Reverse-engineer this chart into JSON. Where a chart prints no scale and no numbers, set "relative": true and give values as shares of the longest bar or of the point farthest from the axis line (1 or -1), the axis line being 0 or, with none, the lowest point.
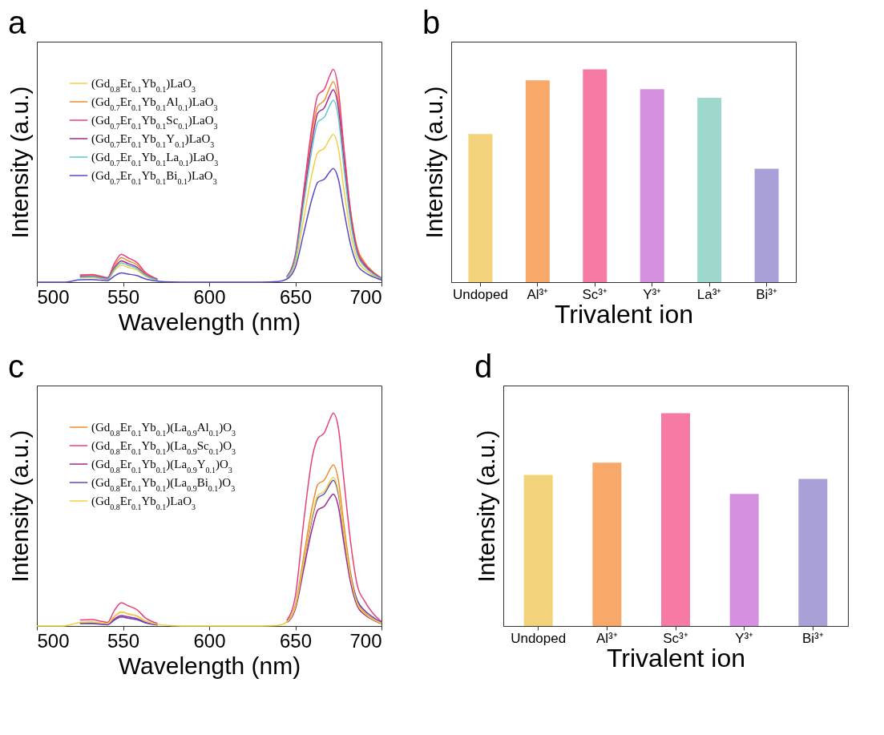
{
  "chart_data": [
    {
      "type": "line",
      "title": "a",
      "xlabel": "Wavelength (nm)",
      "ylabel": "Intensity (a.u.)",
      "relative": true,
      "legend": "top left",
      "xlim": [
        500,
        700
      ],
      "xticks": [
        500,
        550,
        600,
        650,
        700
      ],
      "x": [
        500,
        515,
        520,
        525,
        532,
        537,
        541,
        545,
        549,
        553,
        558,
        563,
        570,
        578,
        590,
        630,
        640,
        645,
        650,
        655,
        660,
        663,
        667,
        670,
        672,
        675,
        678,
        682,
        686,
        690,
        695,
        700
      ],
      "series": [
        {
          "name": "(Gd$_{0.8}$Er$_{0.1}$Yb$_{0.1}$)LaO$_{3}$",
          "color": "#f0d040",
          "values": [
            null,
            null,
            null,
            0.021,
            0.022,
            0.017,
            0.013,
            0.054,
            0.08,
            0.07,
            0.057,
            0.028,
            0.009,
            null,
            null,
            null,
            null,
            0.018,
            0.09,
            0.305,
            0.521,
            0.609,
            0.631,
            0.674,
            0.694,
            0.627,
            0.448,
            0.233,
            0.104,
            0.061,
            0.032,
            0.012
          ]
        },
        {
          "name": "(Gd$_{0.7}$Er$_{0.1}$Yb$_{0.1}$Al$_{0.1}$)LaO$_{3}$",
          "color": "#f08c30",
          "values": [
            null,
            null,
            null,
            0.03,
            0.031,
            0.024,
            0.018,
            0.077,
            0.115,
            0.1,
            0.082,
            0.04,
            0.013,
            null,
            null,
            null,
            null,
            0.024,
            0.122,
            0.43,
            0.72,
            0.827,
            0.856,
            0.915,
            0.942,
            0.852,
            0.64,
            0.34,
            0.16,
            0.095,
            0.05,
            0.02
          ]
        },
        {
          "name": "(Gd$_{0.7}$Er$_{0.1}$Yb$_{0.1}$Sc$_{0.1}$)LaO$_{3}$",
          "color": "#e8407a",
          "values": [
            null,
            null,
            null,
            0.034,
            0.036,
            0.028,
            0.021,
            0.088,
            0.131,
            0.114,
            0.093,
            0.046,
            0.015,
            null,
            null,
            null,
            null,
            0.026,
            0.129,
            0.44,
            0.75,
            0.878,
            0.909,
            0.971,
            1,
            0.904,
            0.646,
            0.336,
            0.15,
            0.088,
            0.046,
            0.018
          ]
        },
        {
          "name": "(Gd$_{0.7}$Er$_{0.1}$Yb$_{0.1}$Y$_{0.1}$)LaO$_{3}$",
          "color": "#a02890",
          "values": [
            null,
            null,
            null,
            0.026,
            0.027,
            0.021,
            0.016,
            0.067,
            0.1,
            0.087,
            0.071,
            0.035,
            0.011,
            null,
            null,
            null,
            null,
            0.024,
            0.117,
            0.398,
            0.678,
            0.794,
            0.822,
            0.878,
            0.904,
            0.817,
            0.584,
            0.304,
            0.136,
            0.08,
            0.042,
            0.016
          ]
        },
        {
          "name": "(Gd$_{0.7}$Er$_{0.1}$Yb$_{0.1}$La$_{0.1}$)LaO$_{3}$",
          "color": "#60c8c8",
          "values": [
            null,
            null,
            null,
            0.023,
            0.025,
            0.019,
            0.014,
            0.061,
            0.09,
            0.079,
            0.064,
            0.032,
            0.01,
            null,
            null,
            null,
            null,
            0.022,
            0.11,
            0.376,
            0.641,
            0.751,
            0.777,
            0.83,
            0.855,
            0.773,
            0.552,
            0.287,
            0.128,
            0.075,
            0.039,
            0.015
          ]
        },
        {
          "name": "(Gd$_{0.7}$Er$_{0.1}$Yb$_{0.1}$Bi$_{0.1}$)LaO$_{3}$",
          "color": "#5848c8",
          "values": [
            0,
            0,
            0.004,
            0.011,
            0.012,
            0.009,
            0.007,
            0.029,
            0.043,
            0.038,
            0.031,
            0.015,
            0.005,
            0.001,
            0,
            0,
            0.003,
            0.014,
            0.069,
            0.235,
            0.401,
            0.469,
            0.485,
            0.519,
            0.534,
            0.483,
            0.345,
            0.179,
            0.08,
            0.047,
            0.025,
            0.01
          ]
        }
      ]
    },
    {
      "type": "bar",
      "title": "b",
      "xlabel": "Trivalent ion",
      "ylabel": "Intensity (a.u.)",
      "relative": true,
      "categories": [
        "Undoped",
        "Al³⁺",
        "Sc³⁺",
        "Y³⁺",
        "La³⁺",
        "Bi³⁺"
      ],
      "values": [
        0.696,
        0.948,
        1,
        0.907,
        0.866,
        0.533
      ],
      "colors": [
        "#f2d27a",
        "#f8a868",
        "#f67aa4",
        "#d690e0",
        "#9ed8cc",
        "#aaa0d8"
      ]
    },
    {
      "type": "line",
      "title": "c",
      "xlabel": "Wavelength (nm)",
      "ylabel": "Intensity (a.u.)",
      "relative": true,
      "legend": "top left",
      "xlim": [
        500,
        700
      ],
      "xticks": [
        500,
        550,
        600,
        650,
        700
      ],
      "x": [
        500,
        515,
        520,
        525,
        532,
        537,
        541,
        545,
        549,
        553,
        558,
        563,
        570,
        578,
        590,
        630,
        640,
        645,
        650,
        655,
        660,
        663,
        667,
        670,
        672,
        675,
        678,
        682,
        686,
        690,
        695,
        700
      ],
      "series": [
        {
          "name": "(Gd$_{0.8}$Er$_{0.1}$Yb$_{0.1}$)(La$_{0.9}$Al$_{0.1}$)O$_{3}$",
          "color": "#f08c30",
          "values": [
            null,
            null,
            null,
            0.017,
            0.018,
            0.014,
            0.011,
            0.044,
            0.066,
            0.057,
            0.047,
            0.023,
            0.008,
            null,
            null,
            null,
            null,
            0.02,
            0.098,
            0.333,
            0.568,
            0.665,
            0.688,
            0.735,
            0.757,
            0.684,
            0.489,
            0.254,
            0.114,
            0.067,
            0.035,
            0.014
          ]
        },
        {
          "name": "(Gd$_{0.8}$Er$_{0.1}$Yb$_{0.1}$)(La$_{0.9}$Sc$_{0.1}$)O$_{3}$",
          "color": "#e8407a",
          "values": [
            null,
            null,
            null,
            0.028,
            0.03,
            0.023,
            0.017,
            0.073,
            0.109,
            0.095,
            0.077,
            0.038,
            0.012,
            null,
            null,
            null,
            null,
            0.026,
            0.14,
            0.5,
            0.8,
            0.88,
            0.91,
            0.97,
            1,
            0.93,
            0.7,
            0.4,
            0.19,
            0.12,
            0.06,
            0.02
          ]
        },
        {
          "name": "(Gd$_{0.8}$Er$_{0.1}$Yb$_{0.1}$)(La$_{0.9}$Y$_{0.1}$)O$_{3}$",
          "color": "#a02890",
          "values": [
            null,
            null,
            null,
            0.013,
            0.013,
            0.01,
            0.008,
            0.033,
            0.049,
            0.043,
            0.035,
            0.017,
            0.006,
            null,
            null,
            null,
            null,
            0.016,
            0.08,
            0.273,
            0.465,
            0.544,
            0.564,
            0.602,
            0.62,
            0.56,
            0.401,
            0.208,
            0.093,
            0.055,
            0.029,
            0.011
          ]
        },
        {
          "name": "(Gd$_{0.8}$Er$_{0.1}$Yb$_{0.1}$)(La$_{0.9}$Bi$_{0.1}$)O$_{3}$",
          "color": "#5848c8",
          "values": [
            null,
            null,
            null,
            0.011,
            0.011,
            0.008,
            0.006,
            0.028,
            0.042,
            0.037,
            0.03,
            0.015,
            0.005,
            null,
            null,
            null,
            null,
            0.018,
            0.088,
            0.301,
            0.514,
            0.601,
            0.623,
            0.665,
            0.685,
            0.619,
            0.443,
            0.24,
            0.12,
            0.075,
            0.042,
            0.016
          ]
        },
        {
          "name": "(Gd$_{0.8}$Er$_{0.1}$Yb$_{0.1}$)LaO$_{3}$",
          "color": "#f0d040",
          "values": [
            0,
            0,
            0.007,
            0.017,
            0.018,
            0.014,
            0.011,
            0.044,
            0.066,
            0.057,
            0.047,
            0.023,
            0.008,
            0.002,
            0,
            0,
            0.003,
            0.018,
            0.09,
            0.307,
            0.524,
            0.613,
            0.634,
            0.678,
            0.698,
            0.631,
            0.451,
            0.235,
            0.105,
            0.061,
            0.032,
            0.013
          ]
        }
      ]
    },
    {
      "type": "bar",
      "title": "d",
      "xlabel": "Trivalent ion",
      "ylabel": "Intensity (a.u.)",
      "relative": true,
      "categories": [
        "Undoped",
        "Al³⁺",
        "Sc³⁺",
        "Y³⁺",
        "Bi³⁺"
      ],
      "values": [
        0.71,
        0.767,
        1,
        0.621,
        0.691
      ],
      "colors": [
        "#f2d27a",
        "#f8a868",
        "#f67aa4",
        "#d690e0",
        "#aaa0d8"
      ]
    }
  ]
}
